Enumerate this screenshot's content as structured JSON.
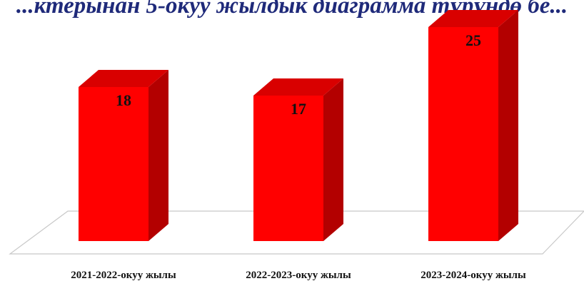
{
  "chart_data": {
    "type": "bar",
    "title": "...ктерынан 5-окуу жылдык диаграмма түрүндө бе...",
    "categories": [
      "2021-2022-окуу жылы",
      "2022-2023-окуу жылы",
      "2023-2024-окуу жылы"
    ],
    "values": [
      18,
      17,
      25
    ],
    "ylim": [
      0,
      25
    ],
    "grid": false,
    "legend": "none",
    "bar_color": "#ff0000",
    "bar_side_color": "#b30000",
    "bar_top_color": "#d90000"
  }
}
